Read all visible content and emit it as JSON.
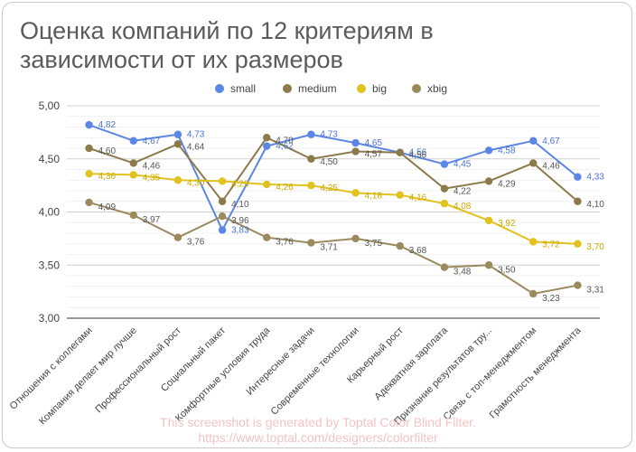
{
  "title_line1": "Оценка компаний по 12 критериям в",
  "title_line2": "зависимости от их размеров",
  "watermark_line1": "This screenshot is generated by Toptal Color Blind Filter.",
  "watermark_line2": "https://www.toptal.com/designers/colorfilter",
  "colors": {
    "small": "#5b86e5",
    "medium": "#8c7a4a",
    "big": "#e2c21e",
    "xbig": "#9a8a5c",
    "grid": "#d9d9d9",
    "text": "#444444"
  },
  "chart_data": {
    "type": "line",
    "title": "Оценка компаний по 12 критериям в зависимости от их размеров",
    "legend_position": "top",
    "ylim": [
      3.0,
      5.0
    ],
    "yticks": [
      "3,00",
      "3,50",
      "4,00",
      "4,50",
      "5,00"
    ],
    "ytick_values": [
      3.0,
      3.5,
      4.0,
      4.5,
      5.0
    ],
    "grid": true,
    "categories": [
      "Отношения с коллегами",
      "Компания делает мир лучше",
      "Профессиональный рост",
      "Социальный пакет",
      "Комфортные условия труда",
      "Интересные задачи",
      "Современные технологии",
      "Карьерный рост",
      "Адекватная зарплата",
      "Признание результатов тру...",
      "Связь с топ-менеджментом",
      "Грамотность менеджмента"
    ],
    "series": [
      {
        "name": "small",
        "color": "#5b86e5",
        "values": [
          4.82,
          4.67,
          4.73,
          3.83,
          4.62,
          4.73,
          4.65,
          4.56,
          4.45,
          4.58,
          4.67,
          4.33
        ],
        "labels": [
          "4,82",
          "4,67",
          "4,73",
          "3,83",
          "4,62",
          "4,73",
          "4,65",
          "4,56",
          "4,45",
          "4,58",
          "4,67",
          "4,33"
        ]
      },
      {
        "name": "medium",
        "color": "#8c7a4a",
        "values": [
          4.6,
          4.46,
          4.64,
          4.1,
          4.7,
          4.5,
          4.57,
          4.56,
          4.22,
          4.29,
          4.46,
          4.1
        ],
        "labels": [
          "4,60",
          "4,46",
          "4,64",
          "4,10",
          "4,70",
          "4,50",
          "4,57",
          "4,56",
          "4,22",
          "4,29",
          "4,46",
          "4,10"
        ]
      },
      {
        "name": "big",
        "color": "#e2c21e",
        "values": [
          4.36,
          4.35,
          4.3,
          4.29,
          4.26,
          4.25,
          4.18,
          4.16,
          4.08,
          3.92,
          3.72,
          3.7
        ],
        "labels": [
          "4,36",
          "4,35",
          "4,30",
          "4,29",
          "4,26",
          "4,25",
          "4,18",
          "4,16",
          "4,08",
          "3,92",
          "3,72",
          "3,70"
        ]
      },
      {
        "name": "xbig",
        "color": "#9a8a5c",
        "values": [
          4.09,
          3.97,
          3.76,
          3.96,
          3.76,
          3.71,
          3.75,
          3.68,
          3.48,
          3.5,
          3.23,
          3.31
        ],
        "labels": [
          "4,09",
          "3,97",
          "3,76",
          "3,96",
          "3,76",
          "3,71",
          "3,75",
          "3,68",
          "3,48",
          "3,50",
          "3,23",
          "3,31"
        ]
      }
    ]
  }
}
